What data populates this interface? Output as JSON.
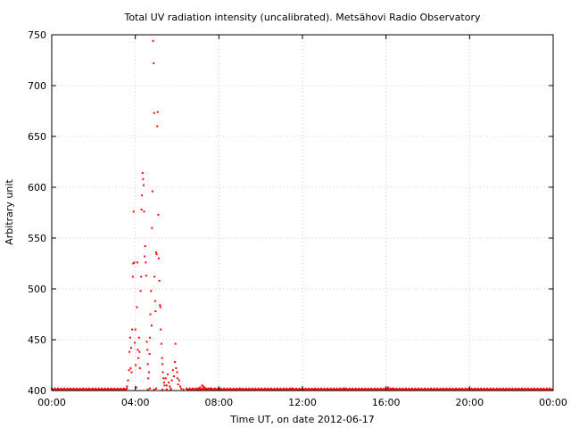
{
  "chart_data": {
    "type": "scatter",
    "title": "Total UV radiation intensity (uncalibrated). Metsähovi Radio Observatory",
    "xlabel": "Time UT, on date 2012-06-17",
    "ylabel": "Arbitrary unit",
    "x_unit": "hours UT",
    "xlim": [
      0,
      24
    ],
    "ylim": [
      400,
      750
    ],
    "x_ticks": [
      {
        "value": 0,
        "label": "00:00"
      },
      {
        "value": 4,
        "label": "04:00"
      },
      {
        "value": 8,
        "label": "08:00"
      },
      {
        "value": 12,
        "label": "12:00"
      },
      {
        "value": 16,
        "label": "16:00"
      },
      {
        "value": 20,
        "label": "20:00"
      },
      {
        "value": 24,
        "label": "00:00"
      }
    ],
    "y_ticks": [
      400,
      450,
      500,
      550,
      600,
      650,
      700,
      750
    ],
    "grid": true,
    "marker_color": "#ff0000",
    "series": [
      {
        "points": [
          [
            3.55,
            401
          ],
          [
            3.6,
            404
          ],
          [
            3.65,
            410
          ],
          [
            3.7,
            420
          ],
          [
            3.72,
            438
          ],
          [
            3.75,
            452
          ],
          [
            3.78,
            422
          ],
          [
            3.8,
            442
          ],
          [
            3.82,
            418
          ],
          [
            3.85,
            460
          ],
          [
            3.88,
            512
          ],
          [
            3.9,
            525
          ],
          [
            3.92,
            576
          ],
          [
            3.95,
            526
          ],
          [
            3.98,
            447
          ],
          [
            4.0,
            460
          ],
          [
            4.02,
            425
          ],
          [
            4.05,
            403
          ],
          [
            4.08,
            482
          ],
          [
            4.1,
            526
          ],
          [
            4.12,
            440
          ],
          [
            4.15,
            432
          ],
          [
            4.18,
            452
          ],
          [
            4.2,
            438
          ],
          [
            4.22,
            422
          ],
          [
            4.25,
            498
          ],
          [
            4.28,
            512
          ],
          [
            4.3,
            578
          ],
          [
            4.32,
            592
          ],
          [
            4.35,
            614
          ],
          [
            4.37,
            608
          ],
          [
            4.4,
            602
          ],
          [
            4.42,
            576
          ],
          [
            4.45,
            532
          ],
          [
            4.47,
            542
          ],
          [
            4.5,
            526
          ],
          [
            4.52,
            513
          ],
          [
            4.55,
            448
          ],
          [
            4.58,
            440
          ],
          [
            4.6,
            426
          ],
          [
            4.62,
            412
          ],
          [
            4.65,
            418
          ],
          [
            4.68,
            436
          ],
          [
            4.7,
            452
          ],
          [
            4.72,
            475
          ],
          [
            4.75,
            498
          ],
          [
            4.78,
            464
          ],
          [
            4.8,
            560
          ],
          [
            4.82,
            596
          ],
          [
            4.85,
            744
          ],
          [
            4.88,
            722
          ],
          [
            4.9,
            673
          ],
          [
            4.92,
            512
          ],
          [
            4.95,
            488
          ],
          [
            4.97,
            478
          ],
          [
            5.0,
            536
          ],
          [
            5.02,
            534
          ],
          [
            5.05,
            660
          ],
          [
            5.07,
            674
          ],
          [
            5.1,
            573
          ],
          [
            5.12,
            530
          ],
          [
            5.15,
            508
          ],
          [
            5.18,
            484
          ],
          [
            5.2,
            482
          ],
          [
            5.22,
            460
          ],
          [
            5.25,
            446
          ],
          [
            5.28,
            432
          ],
          [
            5.3,
            426
          ],
          [
            5.32,
            418
          ],
          [
            5.35,
            412
          ],
          [
            5.38,
            408
          ],
          [
            5.4,
            405
          ],
          [
            5.45,
            412
          ],
          [
            5.5,
            405
          ],
          [
            5.55,
            416
          ],
          [
            5.6,
            408
          ],
          [
            5.65,
            404
          ],
          [
            5.7,
            402
          ],
          [
            5.75,
            410
          ],
          [
            5.8,
            420
          ],
          [
            5.85,
            414
          ],
          [
            5.9,
            428
          ],
          [
            5.92,
            446
          ],
          [
            5.95,
            422
          ],
          [
            6.0,
            418
          ],
          [
            6.02,
            412
          ],
          [
            6.05,
            406
          ],
          [
            6.1,
            410
          ],
          [
            6.15,
            404
          ],
          [
            6.2,
            402
          ],
          [
            4.6,
            401
          ],
          [
            4.7,
            402
          ],
          [
            4.9,
            401
          ],
          [
            5.0,
            402
          ],
          [
            5.3,
            401
          ],
          [
            5.5,
            401
          ],
          [
            5.7,
            401
          ],
          [
            6.3,
            401
          ],
          [
            7.0,
            402
          ],
          [
            7.1,
            403
          ],
          [
            7.2,
            405
          ],
          [
            7.25,
            404
          ],
          [
            7.3,
            403
          ],
          [
            7.4,
            402
          ],
          [
            7.6,
            402
          ],
          [
            7.8,
            402
          ],
          [
            8.0,
            402
          ],
          [
            9.0,
            402
          ],
          [
            11.5,
            402
          ],
          [
            12.0,
            402
          ],
          [
            14.0,
            402
          ],
          [
            16.1,
            403
          ],
          [
            16.3,
            402
          ]
        ]
      }
    ]
  }
}
